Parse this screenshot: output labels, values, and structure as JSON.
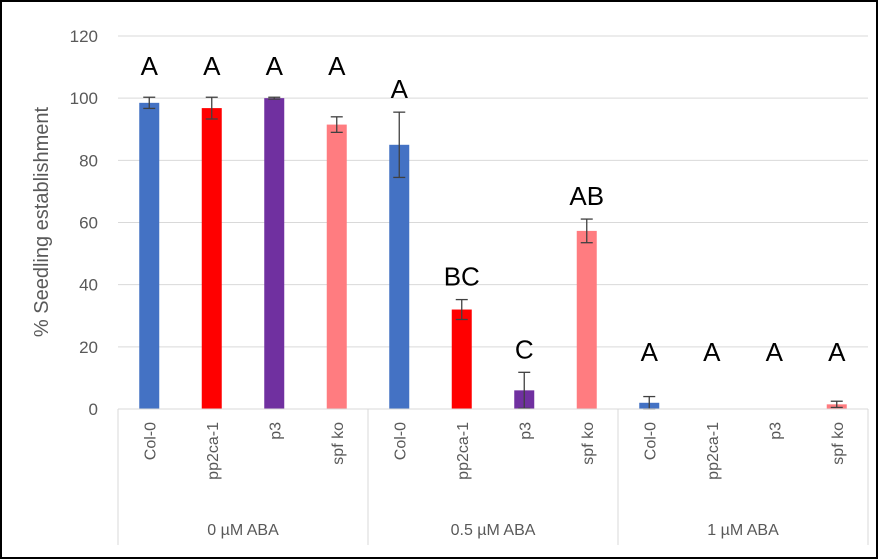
{
  "chart_data": {
    "type": "bar",
    "ylabel": "% Seedling establishment",
    "xlabel": "",
    "ylim": [
      0,
      120
    ],
    "yticks": [
      0,
      20,
      40,
      60,
      80,
      100,
      120
    ],
    "grid": true,
    "groups": [
      {
        "label": "0 µM ABA",
        "bars": [
          {
            "category": "Col-0",
            "value": 98.5,
            "error": 1.8,
            "letter": "A",
            "color": "#4472C4"
          },
          {
            "category": "pp2ca-1",
            "value": 96.8,
            "error": 3.5,
            "letter": "A",
            "color": "#FF0000"
          },
          {
            "category": "p3",
            "value": 100,
            "error": 0.3,
            "letter": "A",
            "color": "#7030A0"
          },
          {
            "category": "spf ko",
            "value": 91.5,
            "error": 2.5,
            "letter": "A",
            "color": "#FF7C80"
          }
        ]
      },
      {
        "label": "0.5 µM ABA",
        "bars": [
          {
            "category": "Col-0",
            "value": 85,
            "error": 10.5,
            "letter": "A",
            "color": "#4472C4"
          },
          {
            "category": "pp2ca-1",
            "value": 32,
            "error": 3.2,
            "letter": "BC",
            "color": "#FF0000"
          },
          {
            "category": "p3",
            "value": 6,
            "error": 5.8,
            "letter": "C",
            "color": "#7030A0"
          },
          {
            "category": "spf ko",
            "value": 57.3,
            "error": 3.8,
            "letter": "AB",
            "color": "#FF7C80"
          }
        ]
      },
      {
        "label": "1 µM ABA",
        "bars": [
          {
            "category": "Col-0",
            "value": 2,
            "error": 2,
            "letter": "A",
            "color": "#4472C4"
          },
          {
            "category": "pp2ca-1",
            "value": 0,
            "error": 0,
            "letter": "A",
            "color": "#FF0000"
          },
          {
            "category": "p3",
            "value": 0,
            "error": 0,
            "letter": "A",
            "color": "#7030A0"
          },
          {
            "category": "spf ko",
            "value": 1.5,
            "error": 1,
            "letter": "A",
            "color": "#FF7C80"
          }
        ]
      }
    ]
  }
}
